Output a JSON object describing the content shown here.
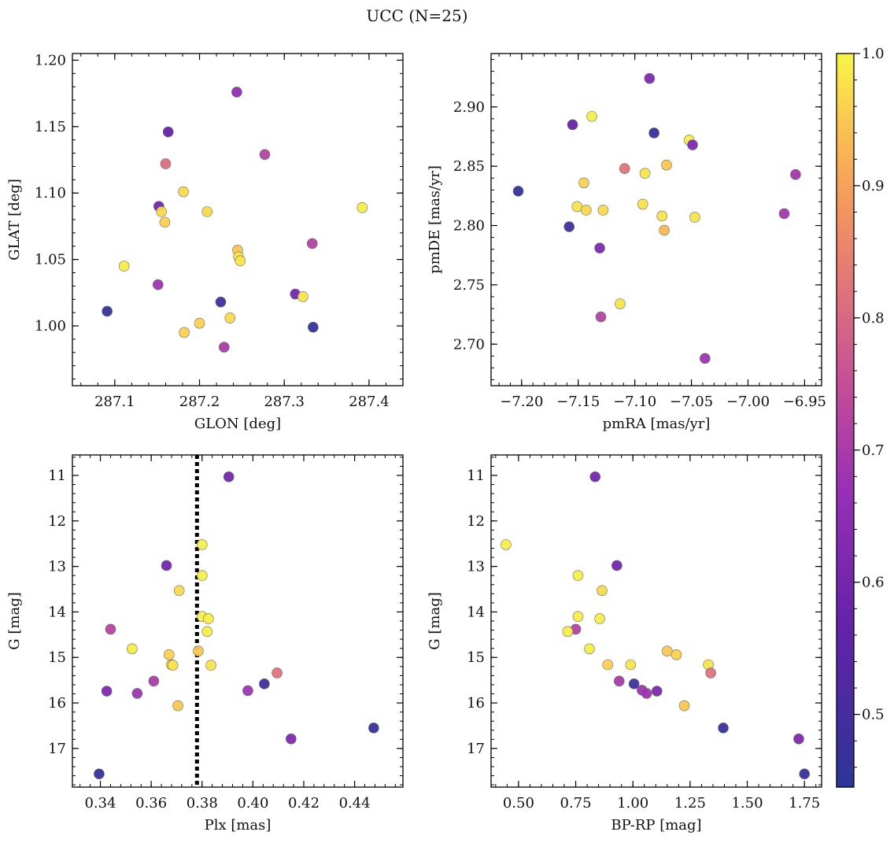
{
  "figure_title": "UCC (N=25)",
  "colorbar": {
    "vmin": 0.445,
    "vmax": 1.0,
    "ticks": [
      0.5,
      0.6,
      0.7,
      0.8,
      0.9,
      1.0
    ],
    "tick_labels": [
      "0.5",
      "0.6",
      "0.7",
      "0.8",
      "0.9",
      "1.0"
    ],
    "colormap": "plasma (truncated, dark purple to yellow)"
  },
  "chart_data": [
    {
      "type": "scatter",
      "title": "",
      "xlabel": "GLON [deg]",
      "ylabel": "GLAT [deg]",
      "xlim": [
        287.05,
        287.44
      ],
      "ylim": [
        0.955,
        1.205
      ],
      "y_inverted": false,
      "xticks": [
        287.1,
        287.2,
        287.3,
        287.4
      ],
      "xtick_labels": [
        "287.1",
        "287.2",
        "287.3",
        "287.4"
      ],
      "yticks": [
        1.0,
        1.05,
        1.1,
        1.15,
        1.2
      ],
      "ytick_labels": [
        "1.00",
        "1.05",
        "1.10",
        "1.15",
        "1.20"
      ],
      "points": [
        {
          "x": 287.244,
          "y": 1.176,
          "c": 0.66
        },
        {
          "x": 287.163,
          "y": 1.146,
          "c": 0.57
        },
        {
          "x": 287.277,
          "y": 1.129,
          "c": 0.72
        },
        {
          "x": 287.16,
          "y": 1.122,
          "c": 0.81
        },
        {
          "x": 287.181,
          "y": 1.101,
          "c": 0.97
        },
        {
          "x": 287.152,
          "y": 1.09,
          "c": 0.6
        },
        {
          "x": 287.392,
          "y": 1.089,
          "c": 0.99
        },
        {
          "x": 287.155,
          "y": 1.086,
          "c": 0.97
        },
        {
          "x": 287.209,
          "y": 1.086,
          "c": 0.97
        },
        {
          "x": 287.159,
          "y": 1.078,
          "c": 0.96
        },
        {
          "x": 287.333,
          "y": 1.062,
          "c": 0.72
        },
        {
          "x": 287.245,
          "y": 1.057,
          "c": 0.95
        },
        {
          "x": 287.246,
          "y": 1.052,
          "c": 0.98
        },
        {
          "x": 287.248,
          "y": 1.049,
          "c": 0.98
        },
        {
          "x": 287.111,
          "y": 1.045,
          "c": 0.99
        },
        {
          "x": 287.151,
          "y": 1.031,
          "c": 0.68
        },
        {
          "x": 287.313,
          "y": 1.024,
          "c": 0.6
        },
        {
          "x": 287.322,
          "y": 1.022,
          "c": 0.98
        },
        {
          "x": 287.225,
          "y": 1.018,
          "c": 0.5
        },
        {
          "x": 287.091,
          "y": 1.011,
          "c": 0.47
        },
        {
          "x": 287.236,
          "y": 1.006,
          "c": 0.97
        },
        {
          "x": 287.2,
          "y": 1.002,
          "c": 0.96
        },
        {
          "x": 287.334,
          "y": 0.999,
          "c": 0.47
        },
        {
          "x": 287.182,
          "y": 0.995,
          "c": 0.96
        },
        {
          "x": 287.229,
          "y": 0.984,
          "c": 0.7
        }
      ]
    },
    {
      "type": "scatter",
      "title": "",
      "xlabel": "pmRA [mas/yr]",
      "ylabel": "pmDE [mas/yr]",
      "xlim": [
        -7.227,
        -6.935
      ],
      "ylim": [
        2.665,
        2.945
      ],
      "y_inverted": false,
      "xticks": [
        -7.2,
        -7.15,
        -7.1,
        -7.05,
        -7.0,
        -6.95
      ],
      "xtick_labels": [
        "−7.20",
        "−7.15",
        "−7.10",
        "−7.05",
        "−7.00",
        "−6.95"
      ],
      "yticks": [
        2.7,
        2.75,
        2.8,
        2.85,
        2.9
      ],
      "ytick_labels": [
        "2.70",
        "2.75",
        "2.80",
        "2.85",
        "2.90"
      ],
      "points": [
        {
          "x": -7.087,
          "y": 2.924,
          "c": 0.62
        },
        {
          "x": -7.138,
          "y": 2.892,
          "c": 0.99
        },
        {
          "x": -7.155,
          "y": 2.885,
          "c": 0.57
        },
        {
          "x": -7.083,
          "y": 2.878,
          "c": 0.47
        },
        {
          "x": -7.052,
          "y": 2.872,
          "c": 0.99
        },
        {
          "x": -7.049,
          "y": 2.868,
          "c": 0.62
        },
        {
          "x": -7.072,
          "y": 2.851,
          "c": 0.95
        },
        {
          "x": -7.109,
          "y": 2.848,
          "c": 0.82
        },
        {
          "x": -7.091,
          "y": 2.844,
          "c": 0.98
        },
        {
          "x": -6.958,
          "y": 2.843,
          "c": 0.69
        },
        {
          "x": -7.145,
          "y": 2.836,
          "c": 0.96
        },
        {
          "x": -7.203,
          "y": 2.829,
          "c": 0.47
        },
        {
          "x": -7.093,
          "y": 2.818,
          "c": 0.98
        },
        {
          "x": -7.151,
          "y": 2.816,
          "c": 0.98
        },
        {
          "x": -7.143,
          "y": 2.813,
          "c": 0.97
        },
        {
          "x": -7.128,
          "y": 2.813,
          "c": 0.97
        },
        {
          "x": -6.968,
          "y": 2.81,
          "c": 0.69
        },
        {
          "x": -7.076,
          "y": 2.808,
          "c": 0.98
        },
        {
          "x": -7.047,
          "y": 2.807,
          "c": 0.98
        },
        {
          "x": -7.158,
          "y": 2.799,
          "c": 0.49
        },
        {
          "x": -7.074,
          "y": 2.796,
          "c": 0.93
        },
        {
          "x": -7.131,
          "y": 2.781,
          "c": 0.62
        },
        {
          "x": -7.113,
          "y": 2.734,
          "c": 0.98
        },
        {
          "x": -7.13,
          "y": 2.723,
          "c": 0.72
        },
        {
          "x": -7.038,
          "y": 2.688,
          "c": 0.68
        }
      ]
    },
    {
      "type": "scatter",
      "title": "",
      "xlabel": "Plx [mas]",
      "ylabel": "G [mag]",
      "xlim": [
        0.329,
        0.459
      ],
      "ylim": [
        17.85,
        10.55
      ],
      "y_inverted": true,
      "xticks": [
        0.34,
        0.36,
        0.38,
        0.4,
        0.42,
        0.44
      ],
      "xtick_labels": [
        "0.34",
        "0.36",
        "0.38",
        "0.40",
        "0.42",
        "0.44"
      ],
      "yticks": [
        11,
        12,
        13,
        14,
        15,
        16,
        17
      ],
      "ytick_labels": [
        "11",
        "12",
        "13",
        "14",
        "15",
        "16",
        "17"
      ],
      "vline": {
        "x": 0.378,
        "style": "dotted",
        "color": "#000000"
      },
      "points": [
        {
          "x": 0.3905,
          "y": 11.03,
          "c": 0.6
        },
        {
          "x": 0.38,
          "y": 12.52,
          "c": 0.99
        },
        {
          "x": 0.366,
          "y": 12.98,
          "c": 0.6
        },
        {
          "x": 0.38,
          "y": 13.2,
          "c": 0.99
        },
        {
          "x": 0.371,
          "y": 13.53,
          "c": 0.97
        },
        {
          "x": 0.38,
          "y": 14.1,
          "c": 0.99
        },
        {
          "x": 0.3825,
          "y": 14.15,
          "c": 0.99
        },
        {
          "x": 0.344,
          "y": 14.38,
          "c": 0.72
        },
        {
          "x": 0.382,
          "y": 14.43,
          "c": 0.99
        },
        {
          "x": 0.3525,
          "y": 14.81,
          "c": 0.99
        },
        {
          "x": 0.3785,
          "y": 14.86,
          "c": 0.95
        },
        {
          "x": 0.367,
          "y": 14.94,
          "c": 0.96
        },
        {
          "x": 0.368,
          "y": 15.16,
          "c": 0.96
        },
        {
          "x": 0.3685,
          "y": 15.17,
          "c": 0.98
        },
        {
          "x": 0.3835,
          "y": 15.17,
          "c": 0.98
        },
        {
          "x": 0.4095,
          "y": 15.34,
          "c": 0.82
        },
        {
          "x": 0.361,
          "y": 15.52,
          "c": 0.7
        },
        {
          "x": 0.4045,
          "y": 15.58,
          "c": 0.48
        },
        {
          "x": 0.3425,
          "y": 15.74,
          "c": 0.62
        },
        {
          "x": 0.398,
          "y": 15.73,
          "c": 0.68
        },
        {
          "x": 0.3545,
          "y": 15.79,
          "c": 0.68
        },
        {
          "x": 0.3705,
          "y": 16.06,
          "c": 0.95
        },
        {
          "x": 0.4475,
          "y": 16.55,
          "c": 0.47
        },
        {
          "x": 0.415,
          "y": 16.79,
          "c": 0.62
        },
        {
          "x": 0.3395,
          "y": 17.56,
          "c": 0.47
        }
      ]
    },
    {
      "type": "scatter",
      "title": "",
      "xlabel": "BP-RP [mag]",
      "ylabel": "G [mag]",
      "xlim": [
        0.38,
        1.825
      ],
      "ylim": [
        17.85,
        10.55
      ],
      "y_inverted": true,
      "xticks": [
        0.5,
        0.75,
        1.0,
        1.25,
        1.5,
        1.75
      ],
      "xtick_labels": [
        "0.50",
        "0.75",
        "1.00",
        "1.25",
        "1.50",
        "1.75"
      ],
      "yticks": [
        11,
        12,
        13,
        14,
        15,
        16,
        17
      ],
      "ytick_labels": [
        "11",
        "12",
        "13",
        "14",
        "15",
        "16",
        "17"
      ],
      "points": [
        {
          "x": 0.835,
          "y": 11.03,
          "c": 0.6
        },
        {
          "x": 0.445,
          "y": 12.52,
          "c": 0.99
        },
        {
          "x": 0.93,
          "y": 12.98,
          "c": 0.6
        },
        {
          "x": 0.76,
          "y": 13.2,
          "c": 0.99
        },
        {
          "x": 0.865,
          "y": 13.53,
          "c": 0.97
        },
        {
          "x": 0.76,
          "y": 14.1,
          "c": 0.99
        },
        {
          "x": 0.855,
          "y": 14.15,
          "c": 0.99
        },
        {
          "x": 0.75,
          "y": 14.38,
          "c": 0.72
        },
        {
          "x": 0.715,
          "y": 14.43,
          "c": 0.99
        },
        {
          "x": 0.81,
          "y": 14.81,
          "c": 0.99
        },
        {
          "x": 1.15,
          "y": 14.86,
          "c": 0.95
        },
        {
          "x": 1.19,
          "y": 14.94,
          "c": 0.96
        },
        {
          "x": 0.89,
          "y": 15.16,
          "c": 0.96
        },
        {
          "x": 0.99,
          "y": 15.16,
          "c": 0.98
        },
        {
          "x": 1.33,
          "y": 15.16,
          "c": 0.98
        },
        {
          "x": 1.34,
          "y": 15.34,
          "c": 0.82
        },
        {
          "x": 0.94,
          "y": 15.52,
          "c": 0.7
        },
        {
          "x": 1.005,
          "y": 15.58,
          "c": 0.48
        },
        {
          "x": 1.04,
          "y": 15.72,
          "c": 0.68
        },
        {
          "x": 1.105,
          "y": 15.74,
          "c": 0.62
        },
        {
          "x": 1.06,
          "y": 15.79,
          "c": 0.68
        },
        {
          "x": 1.225,
          "y": 16.06,
          "c": 0.95
        },
        {
          "x": 1.395,
          "y": 16.55,
          "c": 0.47
        },
        {
          "x": 1.725,
          "y": 16.79,
          "c": 0.62
        },
        {
          "x": 1.75,
          "y": 17.56,
          "c": 0.47
        }
      ]
    }
  ]
}
